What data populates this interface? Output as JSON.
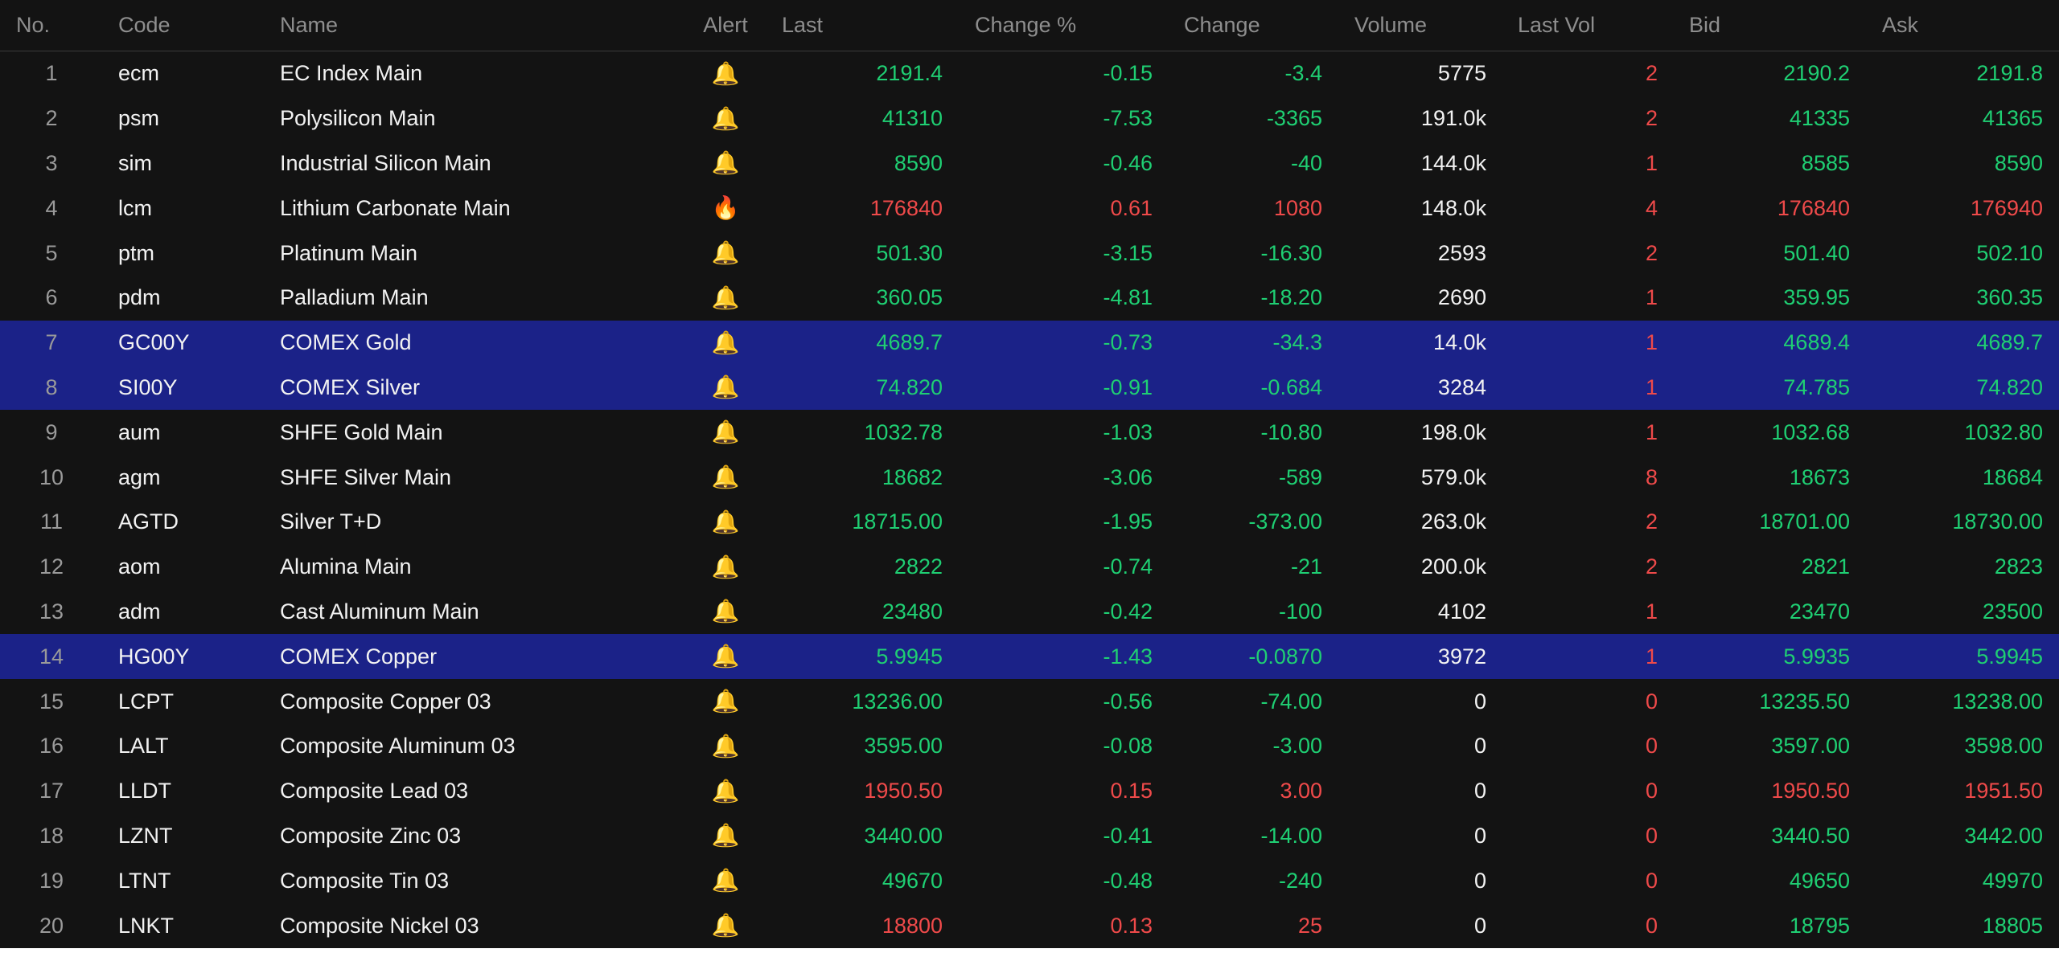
{
  "header": {
    "no": "No.",
    "code": "Code",
    "name": "Name",
    "alert": "Alert",
    "last": "Last",
    "change_pct": "Change %",
    "change": "Change",
    "volume": "Volume",
    "last_vol": "Last Vol",
    "bid": "Bid",
    "ask": "Ask"
  },
  "colors": {
    "background": "#131313",
    "selected_row": "#1b2288",
    "up": "#ef4a4a",
    "down": "#1fcf73",
    "text": "#f2f2f2",
    "muted": "#9a9a9a",
    "bell": "#f5b324"
  },
  "rows": [
    {
      "no": "1",
      "code": "ecm",
      "name": "EC Index Main",
      "alert": "bell-icon",
      "last": "2191.4",
      "change_pct": "-0.15",
      "change": "-3.4",
      "volume": "5775",
      "last_vol": "2",
      "bid": "2190.2",
      "ask": "2191.8",
      "trend": "down",
      "bid_trend": "down",
      "ask_trend": "down",
      "selected": false
    },
    {
      "no": "2",
      "code": "psm",
      "name": "Polysilicon Main",
      "alert": "bell-icon",
      "last": "41310",
      "change_pct": "-7.53",
      "change": "-3365",
      "volume": "191.0k",
      "last_vol": "2",
      "bid": "41335",
      "ask": "41365",
      "trend": "down",
      "bid_trend": "down",
      "ask_trend": "down",
      "selected": false
    },
    {
      "no": "3",
      "code": "sim",
      "name": "Industrial Silicon Main",
      "alert": "bell-icon",
      "last": "8590",
      "change_pct": "-0.46",
      "change": "-40",
      "volume": "144.0k",
      "last_vol": "1",
      "bid": "8585",
      "ask": "8590",
      "trend": "down",
      "bid_trend": "down",
      "ask_trend": "down",
      "selected": false
    },
    {
      "no": "4",
      "code": "lcm",
      "name": "Lithium Carbonate Main",
      "alert": "fire-icon",
      "last": "176840",
      "change_pct": "0.61",
      "change": "1080",
      "volume": "148.0k",
      "last_vol": "4",
      "bid": "176840",
      "ask": "176940",
      "trend": "up",
      "bid_trend": "up",
      "ask_trend": "up",
      "selected": false
    },
    {
      "no": "5",
      "code": "ptm",
      "name": "Platinum Main",
      "alert": "bell-icon",
      "last": "501.30",
      "change_pct": "-3.15",
      "change": "-16.30",
      "volume": "2593",
      "last_vol": "2",
      "bid": "501.40",
      "ask": "502.10",
      "trend": "down",
      "bid_trend": "down",
      "ask_trend": "down",
      "selected": false
    },
    {
      "no": "6",
      "code": "pdm",
      "name": "Palladium Main",
      "alert": "bell-icon",
      "last": "360.05",
      "change_pct": "-4.81",
      "change": "-18.20",
      "volume": "2690",
      "last_vol": "1",
      "bid": "359.95",
      "ask": "360.35",
      "trend": "down",
      "bid_trend": "down",
      "ask_trend": "down",
      "selected": false
    },
    {
      "no": "7",
      "code": "GC00Y",
      "name": "COMEX Gold",
      "alert": "bell-icon",
      "last": "4689.7",
      "change_pct": "-0.73",
      "change": "-34.3",
      "volume": "14.0k",
      "last_vol": "1",
      "bid": "4689.4",
      "ask": "4689.7",
      "trend": "down",
      "bid_trend": "down",
      "ask_trend": "down",
      "selected": true
    },
    {
      "no": "8",
      "code": "SI00Y",
      "name": "COMEX Silver",
      "alert": "bell-icon",
      "last": "74.820",
      "change_pct": "-0.91",
      "change": "-0.684",
      "volume": "3284",
      "last_vol": "1",
      "bid": "74.785",
      "ask": "74.820",
      "trend": "down",
      "bid_trend": "down",
      "ask_trend": "down",
      "selected": true
    },
    {
      "no": "9",
      "code": "aum",
      "name": "SHFE Gold Main",
      "alert": "bell-icon",
      "last": "1032.78",
      "change_pct": "-1.03",
      "change": "-10.80",
      "volume": "198.0k",
      "last_vol": "1",
      "bid": "1032.68",
      "ask": "1032.80",
      "trend": "down",
      "bid_trend": "down",
      "ask_trend": "down",
      "selected": false
    },
    {
      "no": "10",
      "code": "agm",
      "name": "SHFE Silver Main",
      "alert": "bell-icon",
      "last": "18682",
      "change_pct": "-3.06",
      "change": "-589",
      "volume": "579.0k",
      "last_vol": "8",
      "bid": "18673",
      "ask": "18684",
      "trend": "down",
      "bid_trend": "down",
      "ask_trend": "down",
      "selected": false
    },
    {
      "no": "11",
      "code": "AGTD",
      "name": "Silver T+D",
      "alert": "bell-icon",
      "last": "18715.00",
      "change_pct": "-1.95",
      "change": "-373.00",
      "volume": "263.0k",
      "last_vol": "2",
      "bid": "18701.00",
      "ask": "18730.00",
      "trend": "down",
      "bid_trend": "down",
      "ask_trend": "down",
      "selected": false
    },
    {
      "no": "12",
      "code": "aom",
      "name": "Alumina Main",
      "alert": "bell-icon",
      "last": "2822",
      "change_pct": "-0.74",
      "change": "-21",
      "volume": "200.0k",
      "last_vol": "2",
      "bid": "2821",
      "ask": "2823",
      "trend": "down",
      "bid_trend": "down",
      "ask_trend": "down",
      "selected": false
    },
    {
      "no": "13",
      "code": "adm",
      "name": "Cast Aluminum Main",
      "alert": "bell-icon",
      "last": "23480",
      "change_pct": "-0.42",
      "change": "-100",
      "volume": "4102",
      "last_vol": "1",
      "bid": "23470",
      "ask": "23500",
      "trend": "down",
      "bid_trend": "down",
      "ask_trend": "down",
      "selected": false
    },
    {
      "no": "14",
      "code": "HG00Y",
      "name": "COMEX Copper",
      "alert": "bell-icon",
      "last": "5.9945",
      "change_pct": "-1.43",
      "change": "-0.0870",
      "volume": "3972",
      "last_vol": "1",
      "bid": "5.9935",
      "ask": "5.9945",
      "trend": "down",
      "bid_trend": "down",
      "ask_trend": "down",
      "selected": true
    },
    {
      "no": "15",
      "code": "LCPT",
      "name": "Composite Copper 03",
      "alert": "bell-icon",
      "last": "13236.00",
      "change_pct": "-0.56",
      "change": "-74.00",
      "volume": "0",
      "last_vol": "0",
      "bid": "13235.50",
      "ask": "13238.00",
      "trend": "down",
      "bid_trend": "down",
      "ask_trend": "down",
      "selected": false
    },
    {
      "no": "16",
      "code": "LALT",
      "name": "Composite Aluminum 03",
      "alert": "bell-icon",
      "last": "3595.00",
      "change_pct": "-0.08",
      "change": "-3.00",
      "volume": "0",
      "last_vol": "0",
      "bid": "3597.00",
      "ask": "3598.00",
      "trend": "down",
      "bid_trend": "down",
      "ask_trend": "down",
      "selected": false
    },
    {
      "no": "17",
      "code": "LLDT",
      "name": "Composite Lead 03",
      "alert": "bell-icon",
      "last": "1950.50",
      "change_pct": "0.15",
      "change": "3.00",
      "volume": "0",
      "last_vol": "0",
      "bid": "1950.50",
      "ask": "1951.50",
      "trend": "up",
      "bid_trend": "up",
      "ask_trend": "up",
      "selected": false
    },
    {
      "no": "18",
      "code": "LZNT",
      "name": "Composite Zinc 03",
      "alert": "bell-icon",
      "last": "3440.00",
      "change_pct": "-0.41",
      "change": "-14.00",
      "volume": "0",
      "last_vol": "0",
      "bid": "3440.50",
      "ask": "3442.00",
      "trend": "down",
      "bid_trend": "down",
      "ask_trend": "down",
      "selected": false
    },
    {
      "no": "19",
      "code": "LTNT",
      "name": "Composite Tin 03",
      "alert": "bell-icon",
      "last": "49670",
      "change_pct": "-0.48",
      "change": "-240",
      "volume": "0",
      "last_vol": "0",
      "bid": "49650",
      "ask": "49970",
      "trend": "down",
      "bid_trend": "down",
      "ask_trend": "down",
      "selected": false
    },
    {
      "no": "20",
      "code": "LNKT",
      "name": "Composite Nickel 03",
      "alert": "bell-icon",
      "last": "18800",
      "change_pct": "0.13",
      "change": "25",
      "volume": "0",
      "last_vol": "0",
      "bid": "18795",
      "ask": "18805",
      "trend": "up",
      "bid_trend": "down",
      "ask_trend": "down",
      "selected": false
    }
  ]
}
